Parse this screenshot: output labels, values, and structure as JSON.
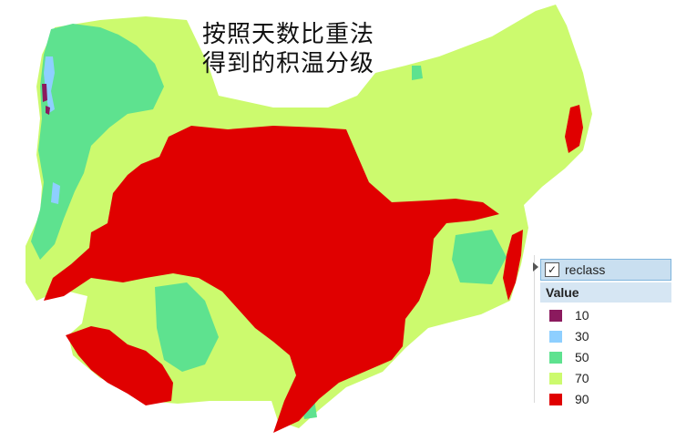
{
  "title": {
    "line1": "按照天数比重法",
    "line2": "得到的积温分级"
  },
  "legend": {
    "layer_name": "reclass",
    "layer_checked": true,
    "field_header": "Value",
    "classes": [
      {
        "label": "10",
        "color": "#8b1a5e"
      },
      {
        "label": "30",
        "color": "#8ecfff"
      },
      {
        "label": "50",
        "color": "#5ee28f"
      },
      {
        "label": "70",
        "color": "#ccfa6e"
      },
      {
        "label": "90",
        "color": "#e00000"
      }
    ]
  },
  "map": {
    "class_colors": {
      "c10": "#8b1a5e",
      "c30": "#8ecfff",
      "c50": "#5ee28f",
      "c70": "#ccfa6e",
      "c90": "#e00000"
    }
  }
}
